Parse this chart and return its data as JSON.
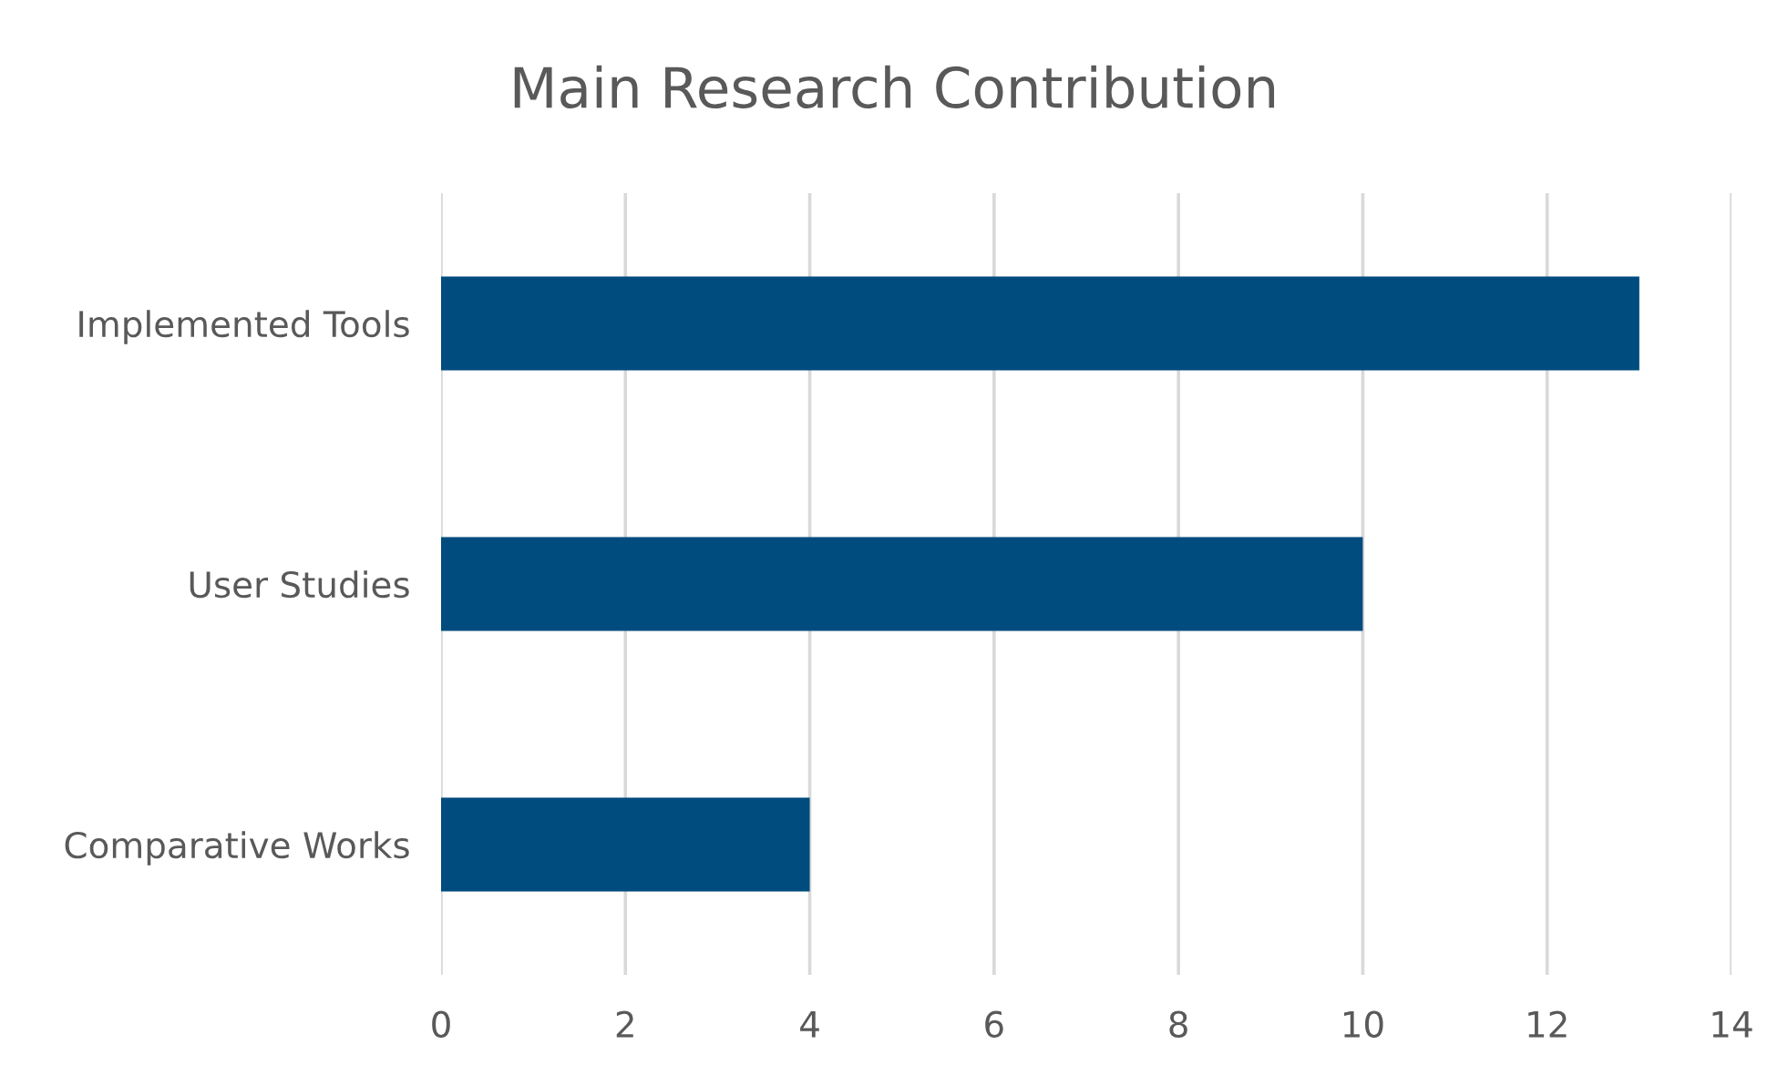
{
  "chart_data": {
    "type": "bar",
    "orientation": "horizontal",
    "title": "Main Research Contribution",
    "categories": [
      "Implemented Tools",
      "User Studies",
      "Comparative Works"
    ],
    "values": [
      13,
      10,
      4
    ],
    "color": "#004c7f",
    "xlim": [
      0,
      14
    ],
    "xticks": [
      0,
      2,
      4,
      6,
      8,
      10,
      12,
      14
    ],
    "grid": "x"
  }
}
